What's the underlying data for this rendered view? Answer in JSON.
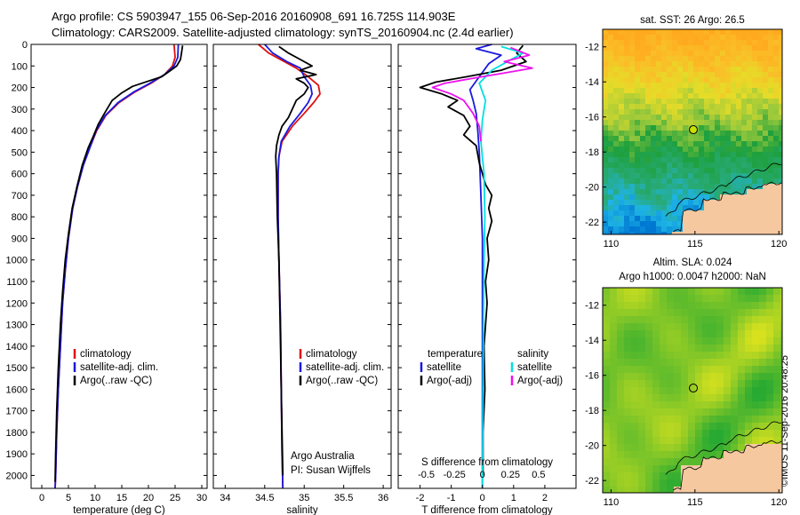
{
  "header": {
    "line1": "Argo profile: CS 5903947_155 06-Sep-2016 20160908_691 16.725S 114.903E",
    "line2": "Climatology: CARS2009. Satellite-adjusted climatology: synTS_20160904.nc (2.4d earlier)"
  },
  "stamp": "©IMOS 11-Sep-2016 20:48:25",
  "depth_ticks": [
    0,
    100,
    200,
    300,
    400,
    500,
    600,
    700,
    800,
    900,
    1000,
    1100,
    1200,
    1300,
    1400,
    1500,
    1600,
    1700,
    1800,
    1900,
    2000
  ],
  "depth_range": [
    0,
    2060
  ],
  "colors": {
    "climatology": "#e01010",
    "satellite": "#1a1ae0",
    "argo": "#000000",
    "sal_satellite": "#00e0e0",
    "sal_argo": "#ee10ee",
    "land": "#f5c8a0",
    "marker": "#c8e000"
  },
  "chart_data": [
    {
      "type": "line",
      "id": "temperature",
      "xlabel": "temperature (deg C)",
      "xlim": [
        -2,
        31
      ],
      "xticks": [
        0,
        5,
        10,
        15,
        20,
        25,
        30
      ],
      "xtick_labels": [
        "0",
        "5",
        "10",
        "15",
        "20",
        "25",
        "30"
      ],
      "legend": [
        "climatology",
        "satellite-adj. clim.",
        "Argo(..raw -QC)"
      ],
      "series": [
        {
          "name": "climatology",
          "color": "#e01010",
          "points": [
            [
              24.8,
              0
            ],
            [
              25.0,
              60
            ],
            [
              24.5,
              100
            ],
            [
              23.0,
              140
            ],
            [
              20.5,
              180
            ],
            [
              17.5,
              220
            ],
            [
              14.5,
              270
            ],
            [
              12.0,
              330
            ],
            [
              10.3,
              400
            ],
            [
              9.0,
              480
            ],
            [
              7.8,
              560
            ],
            [
              6.7,
              660
            ],
            [
              5.8,
              760
            ],
            [
              5.0,
              900
            ],
            [
              4.4,
              1050
            ],
            [
              3.9,
              1200
            ],
            [
              3.5,
              1400
            ],
            [
              3.1,
              1600
            ],
            [
              2.8,
              1800
            ],
            [
              2.6,
              2000
            ],
            [
              2.5,
              2060
            ]
          ]
        },
        {
          "name": "satellite-adj. clim.",
          "color": "#1a1ae0",
          "points": [
            [
              25.6,
              0
            ],
            [
              25.5,
              60
            ],
            [
              24.8,
              100
            ],
            [
              23.0,
              140
            ],
            [
              20.3,
              180
            ],
            [
              17.3,
              220
            ],
            [
              14.3,
              270
            ],
            [
              11.9,
              330
            ],
            [
              10.2,
              400
            ],
            [
              9.0,
              480
            ],
            [
              7.8,
              560
            ],
            [
              6.7,
              660
            ],
            [
              5.8,
              760
            ],
            [
              5.0,
              900
            ],
            [
              4.4,
              1050
            ],
            [
              3.9,
              1200
            ],
            [
              3.5,
              1400
            ],
            [
              3.1,
              1600
            ],
            [
              2.8,
              1800
            ],
            [
              2.6,
              2000
            ],
            [
              2.5,
              2060
            ]
          ]
        },
        {
          "name": "Argo(..raw -QC)",
          "color": "#000000",
          "points": [
            [
              26.4,
              5
            ],
            [
              26.2,
              40
            ],
            [
              26.0,
              70
            ],
            [
              25.3,
              100
            ],
            [
              24.2,
              120
            ],
            [
              22.5,
              150
            ],
            [
              20.0,
              170
            ],
            [
              17.0,
              195
            ],
            [
              15.0,
              225
            ],
            [
              13.2,
              260
            ],
            [
              12.0,
              310
            ],
            [
              10.6,
              370
            ],
            [
              9.6,
              430
            ],
            [
              8.7,
              480
            ],
            [
              7.6,
              560
            ],
            [
              6.6,
              660
            ],
            [
              5.7,
              760
            ],
            [
              5.0,
              880
            ],
            [
              4.4,
              1000
            ],
            [
              3.9,
              1150
            ],
            [
              3.5,
              1300
            ],
            [
              3.1,
              1500
            ],
            [
              2.8,
              1700
            ],
            [
              2.6,
              1900
            ],
            [
              2.5,
              2030
            ]
          ]
        }
      ]
    },
    {
      "type": "line",
      "id": "salinity",
      "xlabel": "salinity",
      "xlim": [
        33.85,
        36.1
      ],
      "xticks": [
        34,
        34.5,
        35,
        35.5,
        36
      ],
      "xtick_labels": [
        "34",
        "34.5",
        "35",
        "35.5",
        "36"
      ],
      "legend": [
        "climatology",
        "satellite-adj. clim.",
        "Argo(..raw -QC)"
      ],
      "annotations": [
        "Argo Australia",
        "PI: Susan Wijffels"
      ],
      "series": [
        {
          "name": "climatology",
          "color": "#e01010",
          "points": [
            [
              34.42,
              0
            ],
            [
              34.55,
              40
            ],
            [
              34.75,
              80
            ],
            [
              34.9,
              110
            ],
            [
              35.05,
              150
            ],
            [
              35.18,
              190
            ],
            [
              35.2,
              230
            ],
            [
              35.12,
              270
            ],
            [
              35.0,
              320
            ],
            [
              34.85,
              380
            ],
            [
              34.72,
              450
            ],
            [
              34.68,
              520
            ],
            [
              34.67,
              600
            ],
            [
              34.67,
              800
            ],
            [
              34.68,
              1000
            ],
            [
              34.7,
              1300
            ],
            [
              34.71,
              1600
            ],
            [
              34.72,
              1900
            ],
            [
              34.73,
              2060
            ]
          ]
        },
        {
          "name": "satellite-adj. clim.",
          "color": "#1a1ae0",
          "points": [
            [
              34.5,
              0
            ],
            [
              34.6,
              40
            ],
            [
              34.78,
              80
            ],
            [
              34.95,
              110
            ],
            [
              35.0,
              150
            ],
            [
              35.08,
              190
            ],
            [
              35.1,
              230
            ],
            [
              35.05,
              270
            ],
            [
              34.95,
              320
            ],
            [
              34.82,
              380
            ],
            [
              34.71,
              450
            ],
            [
              34.68,
              520
            ],
            [
              34.67,
              600
            ],
            [
              34.67,
              800
            ],
            [
              34.68,
              1000
            ],
            [
              34.7,
              1300
            ],
            [
              34.71,
              1600
            ],
            [
              34.72,
              1900
            ],
            [
              34.73,
              2060
            ]
          ]
        },
        {
          "name": "Argo(..raw -QC)",
          "color": "#000000",
          "points": [
            [
              34.68,
              10
            ],
            [
              34.8,
              40
            ],
            [
              34.95,
              70
            ],
            [
              35.1,
              100
            ],
            [
              34.95,
              120
            ],
            [
              35.15,
              140
            ],
            [
              34.9,
              160
            ],
            [
              35.0,
              180
            ],
            [
              35.05,
              200
            ],
            [
              35.0,
              230
            ],
            [
              34.9,
              260
            ],
            [
              34.85,
              300
            ],
            [
              34.8,
              340
            ],
            [
              34.72,
              380
            ],
            [
              34.68,
              420
            ],
            [
              34.65,
              470
            ],
            [
              34.64,
              520
            ],
            [
              34.65,
              600
            ],
            [
              34.66,
              800
            ],
            [
              34.68,
              1000
            ],
            [
              34.69,
              1200
            ],
            [
              34.7,
              1400
            ],
            [
              34.71,
              1600
            ],
            [
              34.72,
              1800
            ],
            [
              34.73,
              2000
            ]
          ]
        }
      ]
    },
    {
      "type": "line",
      "id": "difference",
      "xlabel": "T difference from climatology",
      "xlabel2": "S difference from climatology",
      "xlim": [
        -2.7,
        3.0
      ],
      "xticks": [
        -2,
        -1,
        0,
        1,
        2
      ],
      "xtick_labels": [
        "-2",
        "-1",
        "0",
        "1",
        "2"
      ],
      "xticks_top": [
        -1.8,
        -0.9,
        0,
        0.9,
        1.8
      ],
      "xtick_labels_top": [
        "-0.5",
        "-0.25",
        "0",
        "0.25",
        "0.5"
      ],
      "legend_titles": [
        "temperature",
        "salinity"
      ],
      "legend": [
        "satellite",
        "Argo(-adj)",
        "satellite",
        "Argo(-adj)"
      ],
      "series": [
        {
          "name": "T satellite",
          "color": "#1a1ae0",
          "points": [
            [
              0.3,
              0
            ],
            [
              -0.2,
              20
            ],
            [
              0.6,
              50
            ],
            [
              0.2,
              90
            ],
            [
              -0.1,
              150
            ],
            [
              -0.4,
              210
            ],
            [
              -0.3,
              260
            ],
            [
              -0.2,
              320
            ],
            [
              -0.15,
              400
            ],
            [
              -0.1,
              500
            ],
            [
              -0.05,
              700
            ],
            [
              0,
              900
            ],
            [
              0,
              1200
            ],
            [
              0,
              1500
            ],
            [
              0,
              1800
            ],
            [
              0,
              2060
            ]
          ]
        },
        {
          "name": "T Argo(-adj)",
          "color": "#000000",
          "points": [
            [
              1.3,
              5
            ],
            [
              1.1,
              40
            ],
            [
              1.4,
              80
            ],
            [
              0.6,
              120
            ],
            [
              -0.5,
              150
            ],
            [
              -1.5,
              175
            ],
            [
              -2.0,
              200
            ],
            [
              -1.3,
              230
            ],
            [
              -0.8,
              260
            ],
            [
              -1.1,
              290
            ],
            [
              -0.6,
              330
            ],
            [
              -0.4,
              380
            ],
            [
              -0.6,
              420
            ],
            [
              -0.2,
              470
            ],
            [
              -0.1,
              550
            ],
            [
              0.1,
              650
            ],
            [
              0.3,
              700
            ],
            [
              0.2,
              760
            ],
            [
              0.3,
              820
            ],
            [
              0.15,
              900
            ],
            [
              0.2,
              1000
            ],
            [
              0.1,
              1100
            ],
            [
              0.15,
              1200
            ],
            [
              0.05,
              1400
            ],
            [
              0.08,
              1600
            ],
            [
              0.02,
              1800
            ],
            [
              0.02,
              2000
            ]
          ]
        },
        {
          "name": "S satellite",
          "color": "#00e0e0",
          "points": [
            [
              0.6,
              10
            ],
            [
              1.3,
              40
            ],
            [
              0.8,
              80
            ],
            [
              0.3,
              120
            ],
            [
              -0.1,
              180
            ],
            [
              0.1,
              260
            ],
            [
              0.0,
              350
            ],
            [
              -0.05,
              450
            ],
            [
              0.05,
              600
            ],
            [
              0.08,
              800
            ],
            [
              0.05,
              1000
            ],
            [
              0.03,
              1300
            ],
            [
              0.02,
              1600
            ],
            [
              0.01,
              1900
            ],
            [
              0.0,
              2060
            ]
          ]
        },
        {
          "name": "S Argo(-adj)",
          "color": "#ee10ee",
          "points": [
            [
              0.9,
              15
            ],
            [
              1.5,
              50
            ],
            [
              0.7,
              80
            ],
            [
              1.6,
              110
            ],
            [
              0.8,
              130
            ],
            [
              -0.4,
              160
            ],
            [
              -1.2,
              180
            ],
            [
              -1.6,
              200
            ],
            [
              -1.0,
              230
            ],
            [
              -0.6,
              260
            ],
            [
              -0.3,
              320
            ],
            [
              -0.1,
              380
            ],
            [
              -0.05,
              450
            ]
          ]
        }
      ]
    },
    {
      "type": "heatmap",
      "id": "sst_map",
      "title": "sat. SST: 26 Argo: 26.5",
      "xlim": [
        109.5,
        120.2
      ],
      "ylim": [
        -22.7,
        -11.0
      ],
      "xticks": [
        110,
        115,
        120
      ],
      "xtick_labels": [
        "110",
        "115",
        "120"
      ],
      "yticks": [
        -12,
        -14,
        -16,
        -18,
        -20,
        -22
      ],
      "ytick_labels": [
        "-12",
        "-14",
        "-16",
        "-18",
        "-20",
        "-22"
      ],
      "marker": {
        "lon": 114.903,
        "lat": -16.725
      }
    },
    {
      "type": "heatmap",
      "id": "sla_map",
      "title": "Altim. SLA: 0.024",
      "subtitle": "Argo h1000: 0.0047 h2000: NaN",
      "xlim": [
        109.5,
        120.2
      ],
      "ylim": [
        -22.7,
        -11.0
      ],
      "xticks": [
        110,
        115,
        120
      ],
      "xtick_labels": [
        "110",
        "115",
        "120"
      ],
      "yticks": [
        -12,
        -14,
        -16,
        -18,
        -20,
        -22
      ],
      "ytick_labels": [
        "-12",
        "-14",
        "-16",
        "-18",
        "-20",
        "-22"
      ],
      "marker": {
        "lon": 114.903,
        "lat": -16.725
      }
    }
  ]
}
